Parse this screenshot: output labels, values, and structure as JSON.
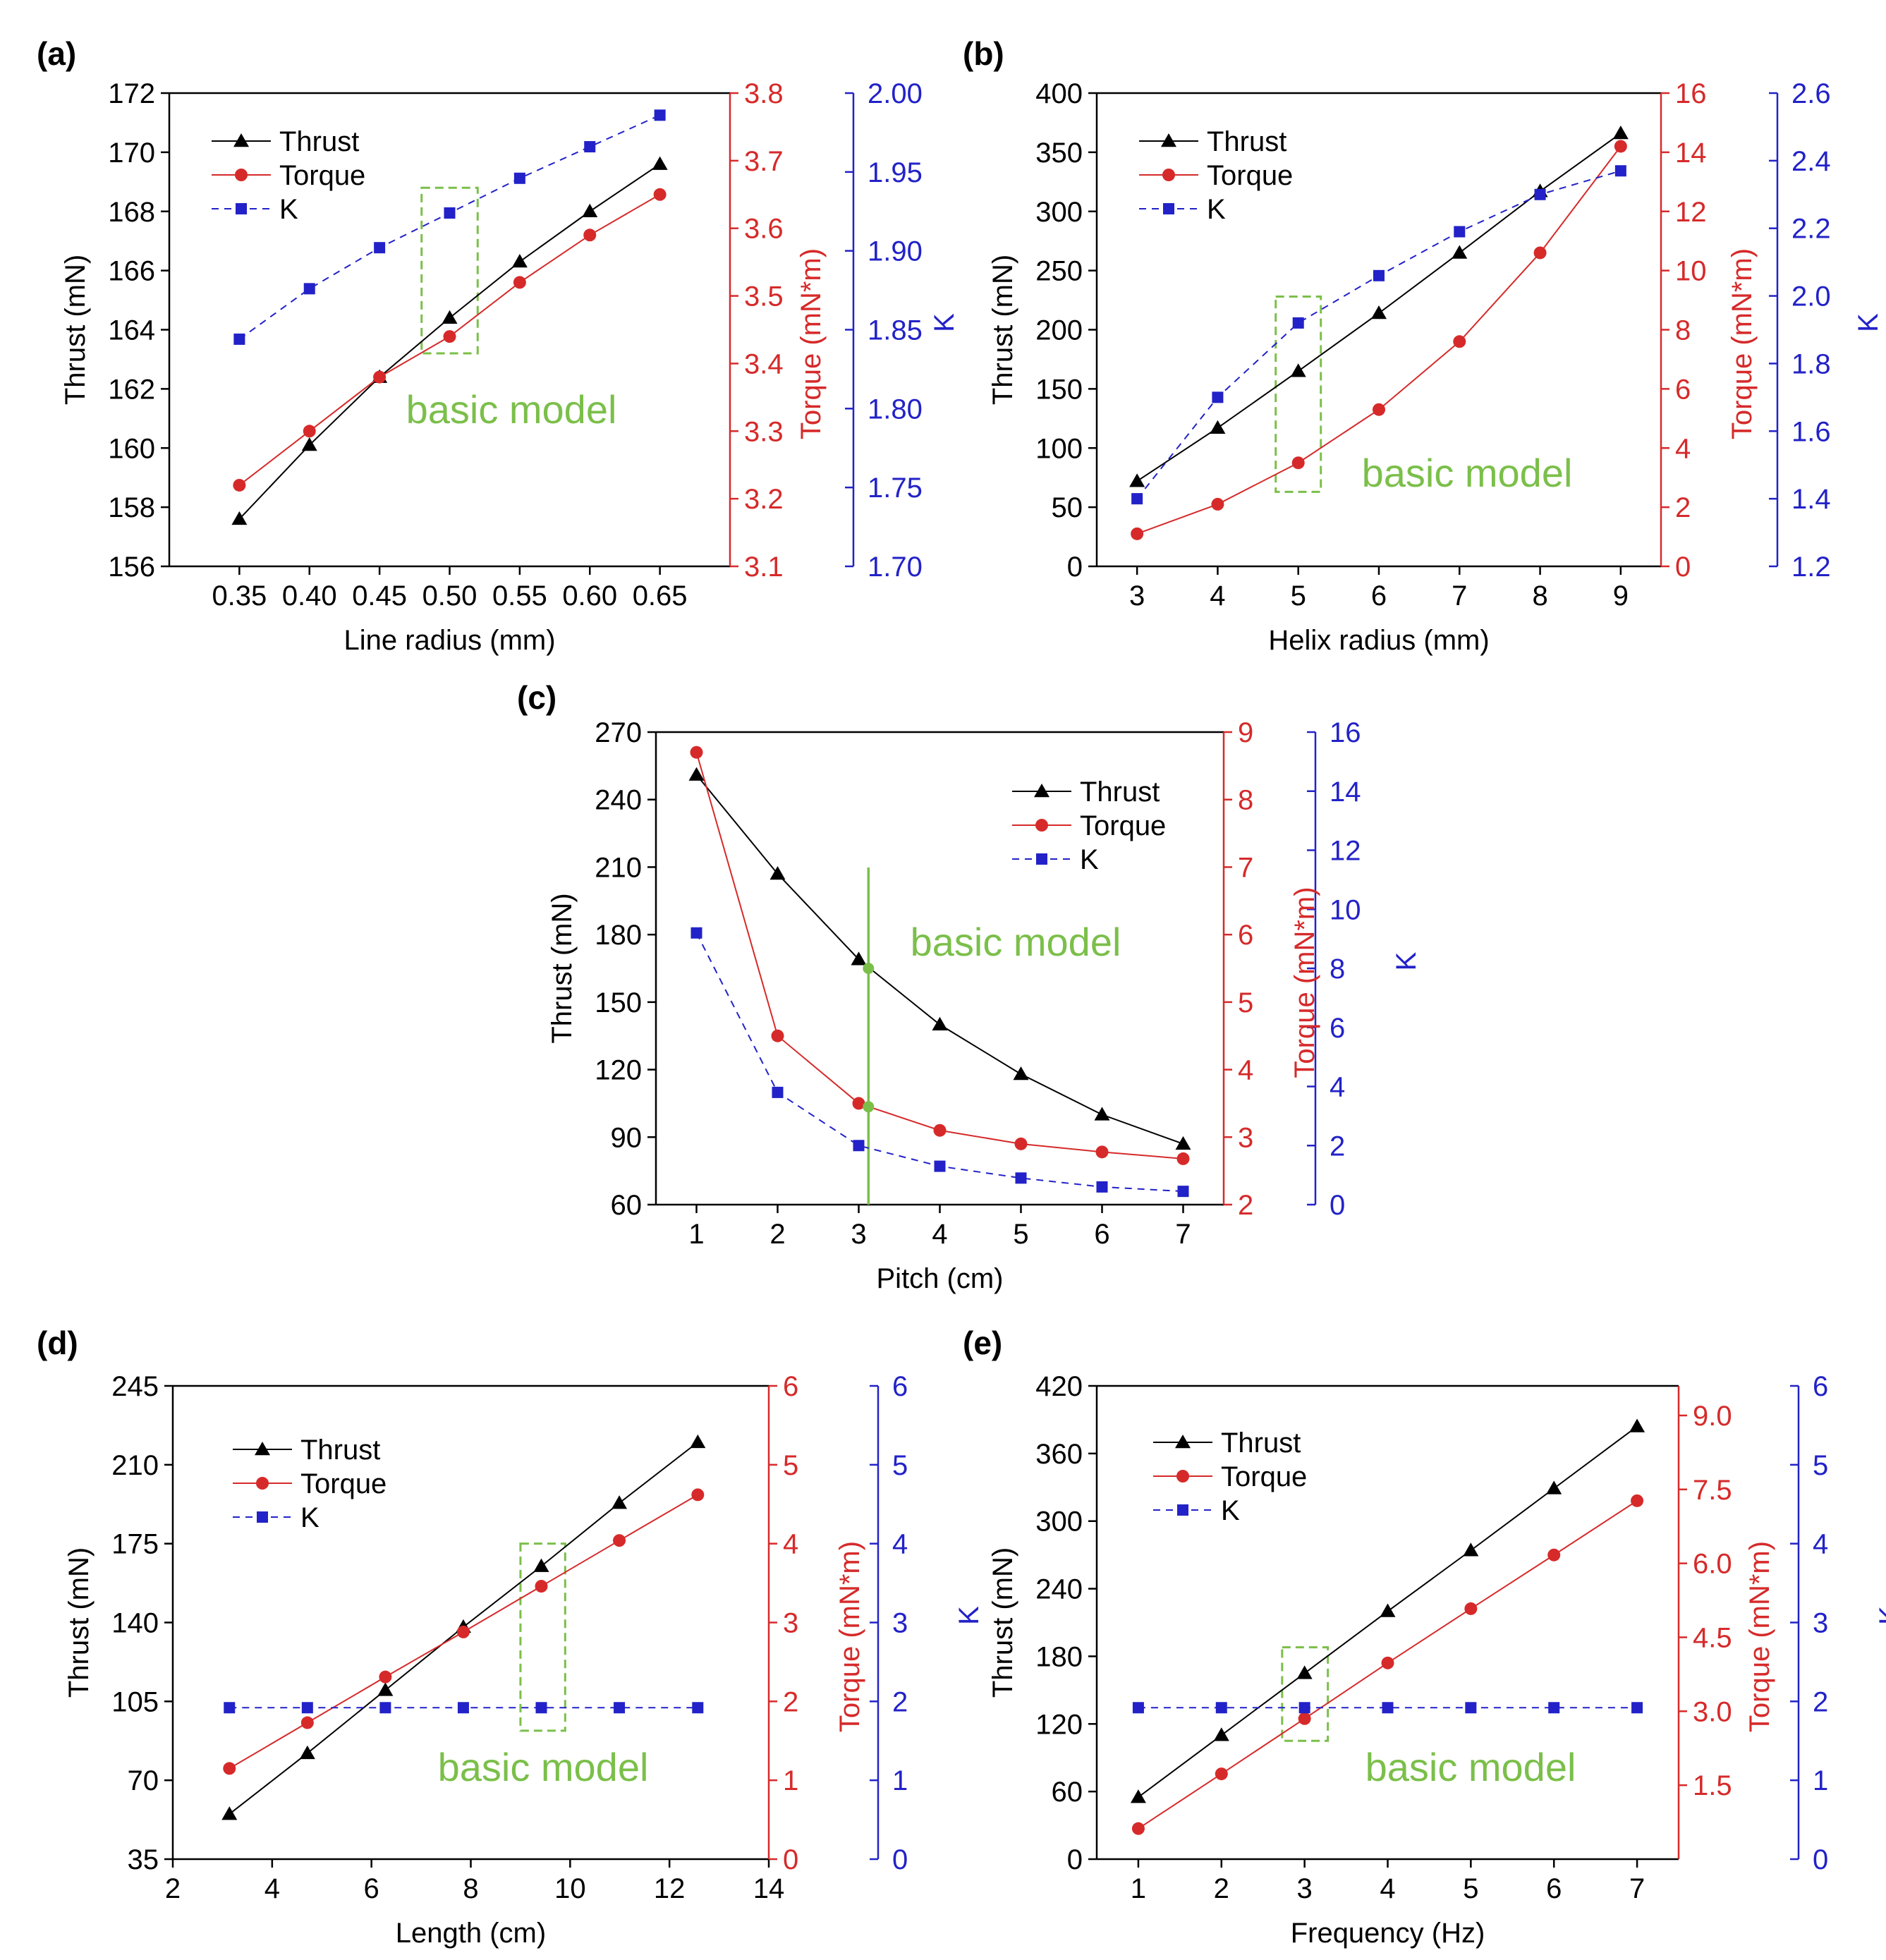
{
  "colors": {
    "thrust": "#000000",
    "torque": "#d62a2a",
    "k": "#2222c8",
    "highlight": "#7bbf4a"
  },
  "chart_data": [
    {
      "panel": "(a)",
      "type": "line",
      "xlabel": "Line radius (mm)",
      "ylabel": "Thrust (mN)",
      "y2label": "Torque (mN*m)",
      "y3label": "K",
      "xlim": [
        0.3,
        0.7
      ],
      "xticks": [
        0.35,
        0.4,
        0.45,
        0.5,
        0.55,
        0.6,
        0.65
      ],
      "xtick_labels": [
        "0.35",
        "0.40",
        "0.45",
        "0.50",
        "0.55",
        "0.60",
        "0.65"
      ],
      "ylim": [
        156,
        172
      ],
      "yticks": [
        156,
        158,
        160,
        162,
        164,
        166,
        168,
        170,
        172
      ],
      "ytick_labels": [
        "156",
        "158",
        "160",
        "162",
        "164",
        "166",
        "168",
        "170",
        "172"
      ],
      "y2lim": [
        3.1,
        3.8
      ],
      "y2ticks": [
        3.1,
        3.2,
        3.3,
        3.4,
        3.5,
        3.6,
        3.7,
        3.8
      ],
      "y2tick_labels": [
        "3.1",
        "3.2",
        "3.3",
        "3.4",
        "3.5",
        "3.6",
        "3.7",
        "3.8"
      ],
      "y3lim": [
        1.7,
        2.0
      ],
      "y3ticks": [
        1.7,
        1.75,
        1.8,
        1.85,
        1.9,
        1.95,
        2.0
      ],
      "y3tick_labels": [
        "1.70",
        "1.75",
        "1.80",
        "1.85",
        "1.90",
        "1.95",
        "2.00"
      ],
      "legend": [
        "Thrust",
        "Torque",
        "K"
      ],
      "legend_position": "top-left",
      "annotation": "basic model",
      "series": [
        {
          "name": "Thrust",
          "axis": "left",
          "x": [
            0.35,
            0.4,
            0.45,
            0.5,
            0.55,
            0.6,
            0.65
          ],
          "y": [
            157.6,
            160.1,
            162.4,
            164.4,
            166.3,
            168.0,
            169.6
          ]
        },
        {
          "name": "Torque",
          "axis": "right",
          "x": [
            0.35,
            0.4,
            0.45,
            0.5,
            0.55,
            0.6,
            0.65
          ],
          "y": [
            3.22,
            3.3,
            3.38,
            3.44,
            3.52,
            3.59,
            3.65
          ]
        },
        {
          "name": "K",
          "axis": "right2",
          "x": [
            0.35,
            0.4,
            0.45,
            0.5,
            0.55,
            0.6,
            0.65
          ],
          "y": [
            1.844,
            1.876,
            1.902,
            1.924,
            1.946,
            1.966,
            1.986
          ]
        }
      ],
      "highlight_box": {
        "x": [
          0.48,
          0.52
        ],
        "y": [
          163.2,
          168.8
        ]
      }
    },
    {
      "panel": "(b)",
      "type": "line",
      "xlabel": "Helix radius (mm)",
      "ylabel": "Thrust (mN)",
      "y2label": "Torque (mN*m)",
      "y3label": "K",
      "xlim": [
        2.5,
        9.5
      ],
      "xticks": [
        3,
        4,
        5,
        6,
        7,
        8,
        9
      ],
      "xtick_labels": [
        "3",
        "4",
        "5",
        "6",
        "7",
        "8",
        "9"
      ],
      "ylim": [
        0,
        400
      ],
      "yticks": [
        0,
        50,
        100,
        150,
        200,
        250,
        300,
        350,
        400
      ],
      "ytick_labels": [
        "0",
        "50",
        "100",
        "150",
        "200",
        "250",
        "300",
        "350",
        "400"
      ],
      "y2lim": [
        0,
        16
      ],
      "y2ticks": [
        0,
        2,
        4,
        6,
        8,
        10,
        12,
        14,
        16
      ],
      "y2tick_labels": [
        "0",
        "2",
        "4",
        "6",
        "8",
        "10",
        "12",
        "14",
        "16"
      ],
      "y3lim": [
        1.2,
        2.6
      ],
      "y3ticks": [
        1.2,
        1.4,
        1.6,
        1.8,
        2.0,
        2.2,
        2.4,
        2.6
      ],
      "y3tick_labels": [
        "1.2",
        "1.4",
        "1.6",
        "1.8",
        "2.0",
        "2.2",
        "2.4",
        "2.6"
      ],
      "legend": [
        "Thrust",
        "Torque",
        "K"
      ],
      "legend_position": "top-left",
      "annotation": "basic model",
      "series": [
        {
          "name": "Thrust",
          "axis": "left",
          "x": [
            3,
            4,
            5,
            6,
            7,
            8,
            9
          ],
          "y": [
            72,
            117,
            165,
            214,
            265,
            317,
            366
          ]
        },
        {
          "name": "Torque",
          "axis": "right",
          "x": [
            3,
            4,
            5,
            6,
            7,
            8,
            9
          ],
          "y": [
            1.1,
            2.1,
            3.5,
            5.3,
            7.6,
            10.6,
            14.2
          ]
        },
        {
          "name": "K",
          "axis": "right2",
          "x": [
            3,
            4,
            5,
            6,
            7,
            8,
            9
          ],
          "y": [
            1.4,
            1.7,
            1.92,
            2.06,
            2.19,
            2.3,
            2.37
          ]
        }
      ],
      "highlight_box": {
        "x": [
          4.72,
          5.28
        ],
        "y": [
          63,
          228
        ]
      }
    },
    {
      "panel": "(c)",
      "type": "line",
      "xlabel": "Pitch (cm)",
      "ylabel": "Thrust (mN)",
      "y2label": "Torque (mN*m)",
      "y3label": "K",
      "xlim": [
        0.5,
        7.5
      ],
      "xticks": [
        1,
        2,
        3,
        4,
        5,
        6,
        7
      ],
      "xtick_labels": [
        "1",
        "2",
        "3",
        "4",
        "5",
        "6",
        "7"
      ],
      "ylim": [
        60,
        270
      ],
      "yticks": [
        60,
        90,
        120,
        150,
        180,
        210,
        240,
        270
      ],
      "ytick_labels": [
        "60",
        "90",
        "120",
        "150",
        "180",
        "210",
        "240",
        "270"
      ],
      "y2lim": [
        2,
        9
      ],
      "y2ticks": [
        2,
        3,
        4,
        5,
        6,
        7,
        8,
        9
      ],
      "y2tick_labels": [
        "2",
        "3",
        "4",
        "5",
        "6",
        "7",
        "8",
        "9"
      ],
      "y3lim": [
        0,
        16
      ],
      "y3ticks": [
        0,
        2,
        4,
        6,
        8,
        10,
        12,
        14,
        16
      ],
      "y3tick_labels": [
        "0",
        "2",
        "4",
        "6",
        "8",
        "10",
        "12",
        "14",
        "16"
      ],
      "legend": [
        "Thrust",
        "Torque",
        "K"
      ],
      "legend_position": "top-right",
      "annotation": "basic model",
      "series": [
        {
          "name": "Thrust",
          "axis": "left",
          "x": [
            1,
            2,
            3,
            4,
            5,
            6,
            7
          ],
          "y": [
            251,
            207,
            169,
            140,
            118,
            100,
            87
          ]
        },
        {
          "name": "Torque",
          "axis": "right",
          "x": [
            1,
            2,
            3,
            4,
            5,
            6,
            7
          ],
          "y": [
            8.7,
            4.5,
            3.5,
            3.1,
            2.9,
            2.78,
            2.68
          ]
        },
        {
          "name": "K",
          "axis": "right2",
          "x": [
            1,
            2,
            3,
            4,
            5,
            6,
            7
          ],
          "y": [
            9.2,
            3.8,
            2.0,
            1.3,
            0.9,
            0.6,
            0.45
          ]
        }
      ],
      "highlight_line": {
        "x": 3.12,
        "markers": [
          {
            "series": "Thrust",
            "y": 165
          },
          {
            "series": "Torque",
            "y": 3.45
          }
        ]
      }
    },
    {
      "panel": "(d)",
      "type": "line",
      "xlabel": "Length (cm)",
      "ylabel": "Thrust (mN)",
      "y2label": "Torque (mN*m)",
      "y3label": "K",
      "xlim": [
        2,
        14
      ],
      "xticks": [
        2,
        4,
        6,
        8,
        10,
        12,
        14
      ],
      "xtick_labels": [
        "2",
        "4",
        "6",
        "8",
        "10",
        "12",
        "14"
      ],
      "ylim": [
        35,
        245
      ],
      "yticks": [
        35,
        70,
        105,
        140,
        175,
        210,
        245
      ],
      "ytick_labels": [
        "35",
        "70",
        "105",
        "140",
        "175",
        "210",
        "245"
      ],
      "y2lim": [
        0,
        6
      ],
      "y2ticks": [
        0,
        1,
        2,
        3,
        4,
        5,
        6
      ],
      "y2tick_labels": [
        "0",
        "1",
        "2",
        "3",
        "4",
        "5",
        "6"
      ],
      "y3lim": [
        0,
        6
      ],
      "y3ticks": [
        0,
        1,
        2,
        3,
        4,
        5,
        6
      ],
      "y3tick_labels": [
        "0",
        "1",
        "2",
        "3",
        "4",
        "5",
        "6"
      ],
      "legend": [
        "Thrust",
        "Torque",
        "K"
      ],
      "legend_position": "top-left",
      "annotation": "basic model",
      "series": [
        {
          "name": "Thrust",
          "axis": "left",
          "x": [
            3.14,
            4.71,
            6.28,
            7.85,
            9.42,
            10.99,
            12.57
          ],
          "y": [
            55,
            82,
            110,
            138,
            165,
            193,
            220
          ]
        },
        {
          "name": "Torque",
          "axis": "right",
          "x": [
            3.14,
            4.71,
            6.28,
            7.85,
            9.42,
            10.99,
            12.57
          ],
          "y": [
            1.15,
            1.73,
            2.31,
            2.88,
            3.46,
            4.04,
            4.62
          ]
        },
        {
          "name": "K",
          "axis": "right2",
          "x": [
            3.14,
            4.71,
            6.28,
            7.85,
            9.42,
            10.99,
            12.57
          ],
          "y": [
            1.92,
            1.92,
            1.92,
            1.92,
            1.92,
            1.92,
            1.92
          ]
        }
      ],
      "highlight_box": {
        "x": [
          9.0,
          9.9
        ],
        "y": [
          92,
          175
        ]
      }
    },
    {
      "panel": "(e)",
      "type": "line",
      "xlabel": "Frequency (Hz)",
      "ylabel": "Thrust (mN)",
      "y2label": "Torque (mN*m)",
      "y3label": "K",
      "xlim": [
        0.5,
        7.5
      ],
      "xticks": [
        1,
        2,
        3,
        4,
        5,
        6,
        7
      ],
      "xtick_labels": [
        "1",
        "2",
        "3",
        "4",
        "5",
        "6",
        "7"
      ],
      "ylim": [
        0,
        420
      ],
      "yticks": [
        0,
        60,
        120,
        180,
        240,
        300,
        360,
        420
      ],
      "ytick_labels": [
        "0",
        "60",
        "120",
        "180",
        "240",
        "300",
        "360",
        "420"
      ],
      "y2lim": [
        0,
        9.6
      ],
      "y2ticks": [
        1.5,
        3.0,
        4.5,
        6.0,
        7.5,
        9.0
      ],
      "y2tick_labels": [
        "1.5",
        "3.0",
        "4.5",
        "6.0",
        "7.5",
        "9.0"
      ],
      "y3lim": [
        0,
        6
      ],
      "y3ticks": [
        0,
        1,
        2,
        3,
        4,
        5,
        6
      ],
      "y3tick_labels": [
        "0",
        "1",
        "2",
        "3",
        "4",
        "5",
        "6"
      ],
      "legend": [
        "Thrust",
        "Torque",
        "K"
      ],
      "legend_position": "top-left",
      "annotation": "basic model",
      "series": [
        {
          "name": "Thrust",
          "axis": "left",
          "x": [
            1,
            2,
            3,
            4,
            5,
            6,
            7
          ],
          "y": [
            55,
            110,
            165,
            220,
            274,
            329,
            384
          ]
        },
        {
          "name": "Torque",
          "axis": "right",
          "x": [
            1,
            2,
            3,
            4,
            5,
            6,
            7
          ],
          "y": [
            0.62,
            1.73,
            2.85,
            3.98,
            5.08,
            6.17,
            7.27
          ]
        },
        {
          "name": "K",
          "axis": "right2",
          "x": [
            1,
            2,
            3,
            4,
            5,
            6,
            7
          ],
          "y": [
            1.92,
            1.92,
            1.92,
            1.92,
            1.92,
            1.92,
            1.92
          ]
        }
      ],
      "highlight_box": {
        "x": [
          2.73,
          3.28
        ],
        "y": [
          105,
          188
        ]
      }
    }
  ]
}
